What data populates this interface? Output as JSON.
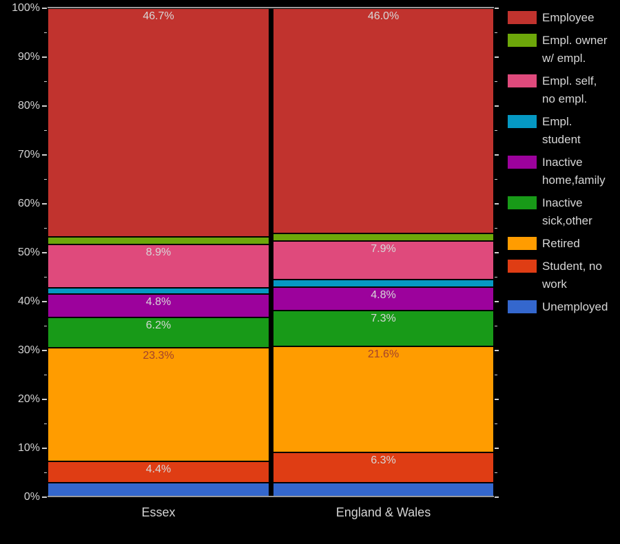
{
  "chart_data": {
    "type": "bar",
    "stacked": true,
    "orientation": "vertical",
    "title": "",
    "xlabel": "",
    "ylabel": "",
    "ylim": [
      0,
      100
    ],
    "grid": false,
    "categories": [
      "Essex",
      "England & Wales"
    ],
    "series": [
      {
        "name": "Employee",
        "color": "#c1332e",
        "label_color": "#d8d8d8",
        "values": [
          46.7,
          46.0
        ],
        "value_labels": [
          "46.7%",
          "46.0%"
        ]
      },
      {
        "name": "Empl. owner w/ empl.",
        "color": "#6da70a",
        "label_color": "#d8d8d8",
        "values": [
          1.6,
          1.6
        ],
        "value_labels": [
          "",
          ""
        ]
      },
      {
        "name": "Empl. self, no empl.",
        "color": "#df4a7c",
        "label_color": "#d8d8d8",
        "values": [
          8.9,
          7.9
        ],
        "value_labels": [
          "8.9%",
          "7.9%"
        ]
      },
      {
        "name": "Empl. student",
        "color": "#0598c3",
        "label_color": "#d8d8d8",
        "values": [
          1.2,
          1.6
        ],
        "value_labels": [
          "",
          ""
        ]
      },
      {
        "name": "Inactive home,family",
        "color": "#9c029c",
        "label_color": "#d8d8d8",
        "values": [
          4.8,
          4.8
        ],
        "value_labels": [
          "4.8%",
          "4.8%"
        ]
      },
      {
        "name": "Inactive sick,other",
        "color": "#189a18",
        "label_color": "#d8d8d8",
        "values": [
          6.2,
          7.3
        ],
        "value_labels": [
          "6.2%",
          "7.3%"
        ]
      },
      {
        "name": "Retired",
        "color": "#ff9c00",
        "label_color": "#a2422d",
        "values": [
          23.3,
          21.6
        ],
        "value_labels": [
          "23.3%",
          "21.6%"
        ]
      },
      {
        "name": "Student, no work",
        "color": "#df3d14",
        "label_color": "#d8d8d8",
        "values": [
          4.4,
          6.3
        ],
        "value_labels": [
          "4.4%",
          "6.3%"
        ]
      },
      {
        "name": "Unemployed",
        "color": "#3467cd",
        "label_color": "#d8d8d8",
        "values": [
          2.9,
          2.9
        ],
        "value_labels": [
          "",
          ""
        ]
      }
    ],
    "y_axis": {
      "ticks": [
        {
          "value": 0,
          "label": "0%"
        },
        {
          "value": 10,
          "label": "10%"
        },
        {
          "value": 20,
          "label": "20%"
        },
        {
          "value": 30,
          "label": "30%"
        },
        {
          "value": 40,
          "label": "40%"
        },
        {
          "value": 50,
          "label": "50%"
        },
        {
          "value": 60,
          "label": "60%"
        },
        {
          "value": 70,
          "label": "70%"
        },
        {
          "value": 80,
          "label": "80%"
        },
        {
          "value": 90,
          "label": "90%"
        },
        {
          "value": 100,
          "label": "100%"
        }
      ],
      "minor_ticks": [
        5,
        15,
        25,
        35,
        45,
        55,
        65,
        75,
        85,
        95
      ]
    },
    "legend": {
      "position": "right",
      "items": [
        {
          "label": "Employee",
          "color": "#c1332e"
        },
        {
          "label": "Empl. owner\nw/ empl.",
          "color": "#6da70a"
        },
        {
          "label": "Empl. self,\nno empl.",
          "color": "#df4a7c"
        },
        {
          "label": "Empl.\nstudent",
          "color": "#0598c3"
        },
        {
          "label": "Inactive\nhome,family",
          "color": "#9c029c"
        },
        {
          "label": "Inactive\nsick,other",
          "color": "#189a18"
        },
        {
          "label": "Retired",
          "color": "#ff9c00"
        },
        {
          "label": "Student, no\nwork",
          "color": "#df3d14"
        },
        {
          "label": "Unemployed",
          "color": "#3467cd"
        }
      ]
    }
  },
  "colors": {
    "background": "#000000",
    "axis_text": "#d4d4d4",
    "tick": "#cfcfcf",
    "segment_border": "#000000",
    "axis_line": "#9a9a9a"
  }
}
